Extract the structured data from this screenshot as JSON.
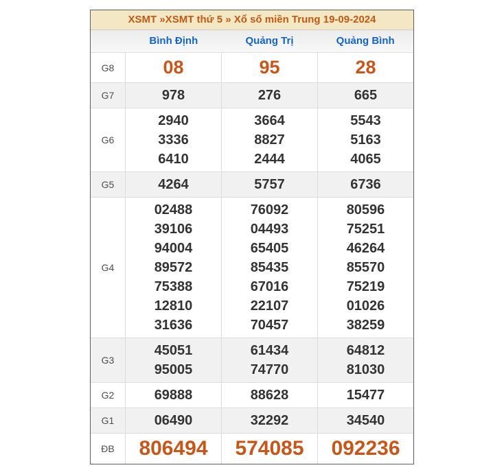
{
  "title": {
    "part1": "XSMT",
    "part2": "»XSMT thứ 5",
    "part3": "» Xổ số miền Trung 19-09-2024"
  },
  "columns": [
    "Bình Định",
    "Quảng Trị",
    "Quảng Bình"
  ],
  "prizes": [
    {
      "label": "G8",
      "values": [
        [
          "08"
        ],
        [
          "95"
        ],
        [
          "28"
        ]
      ]
    },
    {
      "label": "G7",
      "values": [
        [
          "978"
        ],
        [
          "276"
        ],
        [
          "665"
        ]
      ]
    },
    {
      "label": "G6",
      "values": [
        [
          "2940",
          "3336",
          "6410"
        ],
        [
          "3664",
          "8827",
          "2444"
        ],
        [
          "5543",
          "5163",
          "4065"
        ]
      ]
    },
    {
      "label": "G5",
      "values": [
        [
          "4264"
        ],
        [
          "5757"
        ],
        [
          "6736"
        ]
      ]
    },
    {
      "label": "G4",
      "values": [
        [
          "02488",
          "39106",
          "94004",
          "89572",
          "75388",
          "12810",
          "31636"
        ],
        [
          "76092",
          "04493",
          "65405",
          "85435",
          "67016",
          "22107",
          "70457"
        ],
        [
          "80596",
          "75251",
          "46264",
          "85570",
          "75219",
          "01026",
          "38259"
        ]
      ]
    },
    {
      "label": "G3",
      "values": [
        [
          "45051",
          "95005"
        ],
        [
          "61434",
          "74770"
        ],
        [
          "64812",
          "81030"
        ]
      ]
    },
    {
      "label": "G2",
      "values": [
        [
          "69888"
        ],
        [
          "88628"
        ],
        [
          "15477"
        ]
      ]
    },
    {
      "label": "G1",
      "values": [
        [
          "06490"
        ],
        [
          "32292"
        ],
        [
          "34540"
        ]
      ]
    },
    {
      "label": "ĐB",
      "values": [
        [
          "806494"
        ],
        [
          "574085"
        ],
        [
          "092236"
        ]
      ]
    }
  ],
  "colors": {
    "accent_orange": "#c5571b",
    "link_blue": "#1565c0",
    "title_bg": "#f4e8c4",
    "stripe_bg": "#f1f1f1",
    "number_color": "#333333",
    "outer_border": "#5d5d5d"
  }
}
